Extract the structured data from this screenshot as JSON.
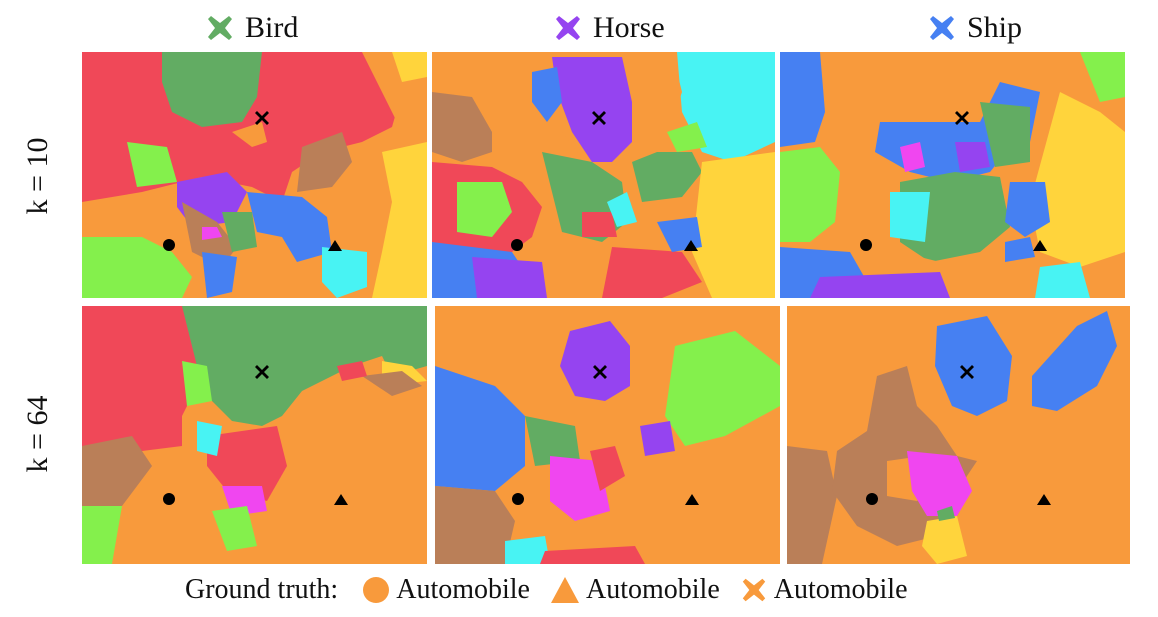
{
  "colors": {
    "orange": "#F89A3C",
    "red": "#F04858",
    "green": "#62AC63",
    "lime": "#84F04C",
    "purple": "#9544F0",
    "blue": "#4680F2",
    "cyan": "#48F3F3",
    "brown": "#BA7F58",
    "magenta": "#F046F0",
    "yellow": "#FFD43C"
  },
  "columns": [
    {
      "label": "Bird",
      "marker_color": "#62AC63",
      "icon": "x-mark-icon"
    },
    {
      "label": "Horse",
      "marker_color": "#9544F0",
      "icon": "x-mark-icon"
    },
    {
      "label": "Ship",
      "marker_color": "#4680F2",
      "icon": "x-mark-icon"
    }
  ],
  "rows": [
    {
      "label": "k = 10"
    },
    {
      "label": "k = 64"
    }
  ],
  "legend": {
    "title": "Ground truth:",
    "items": [
      {
        "label": "Automobile",
        "icon": "circle-icon",
        "color": "#F89A3C"
      },
      {
        "label": "Automobile",
        "icon": "triangle-icon",
        "color": "#F89A3C"
      },
      {
        "label": "Automobile",
        "icon": "x-mark-icon",
        "color": "#F89A3C"
      }
    ]
  }
}
